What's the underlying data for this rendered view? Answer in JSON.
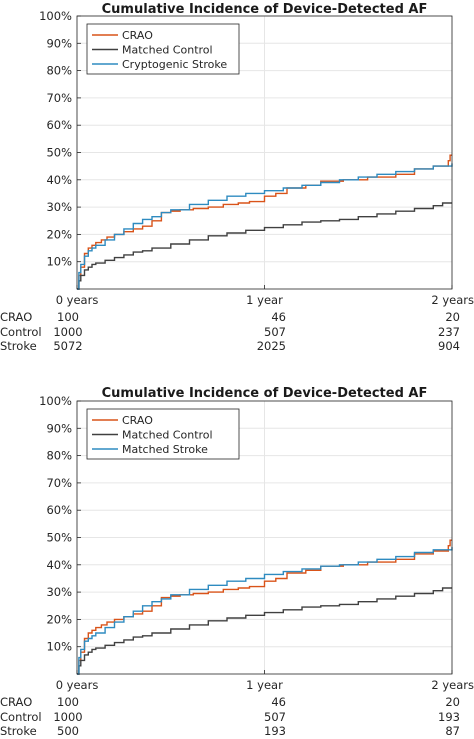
{
  "chart_data": [
    {
      "type": "line",
      "step": true,
      "title": "Cumulative Incidence of Device-Detected AF",
      "xlabel": "",
      "ylabel": "",
      "xlim": [
        0,
        2
      ],
      "ylim": [
        0,
        100
      ],
      "x_ticks": [
        0,
        1,
        2
      ],
      "x_tick_labels": [
        "0 years",
        "1 year",
        "2 years"
      ],
      "y_ticks": [
        10,
        20,
        30,
        40,
        50,
        60,
        70,
        80,
        90,
        100
      ],
      "y_tick_labels": [
        "10%",
        "20%",
        "30%",
        "40%",
        "50%",
        "60%",
        "70%",
        "80%",
        "90%",
        "100%"
      ],
      "grid": true,
      "legend_position": "top-left",
      "series": [
        {
          "name": "CRAO",
          "color": "#D95319",
          "x": [
            0,
            0.01,
            0.02,
            0.04,
            0.06,
            0.08,
            0.1,
            0.13,
            0.16,
            0.2,
            0.25,
            0.3,
            0.35,
            0.4,
            0.45,
            0.5,
            0.55,
            0.62,
            0.7,
            0.78,
            0.86,
            0.92,
            1.0,
            1.06,
            1.12,
            1.22,
            1.3,
            1.42,
            1.55,
            1.7,
            1.8,
            1.9,
            1.98,
            1.99,
            2.0
          ],
          "y": [
            0,
            5,
            8,
            13,
            15,
            16,
            17,
            18,
            19,
            20,
            21,
            22,
            23,
            25,
            28,
            28.5,
            29,
            29.5,
            30,
            31,
            31.5,
            32,
            34,
            35,
            37,
            38,
            39.5,
            40,
            41,
            42,
            44,
            45,
            47,
            49,
            49
          ]
        },
        {
          "name": "Matched Control",
          "color": "#404040",
          "x": [
            0,
            0.01,
            0.02,
            0.04,
            0.06,
            0.08,
            0.1,
            0.15,
            0.2,
            0.25,
            0.3,
            0.35,
            0.4,
            0.5,
            0.6,
            0.7,
            0.8,
            0.9,
            1.0,
            1.1,
            1.2,
            1.3,
            1.4,
            1.5,
            1.6,
            1.7,
            1.8,
            1.9,
            1.95,
            2.0
          ],
          "y": [
            0,
            3,
            5,
            7,
            8,
            9,
            9.5,
            10.5,
            11.5,
            12.5,
            13.5,
            14,
            15,
            16.5,
            18,
            19.5,
            20.5,
            21.5,
            22.5,
            23.5,
            24.5,
            25,
            25.5,
            26.5,
            27.5,
            28.5,
            29.5,
            30.5,
            31.5,
            31.5
          ]
        },
        {
          "name": "Cryptogenic Stroke",
          "color": "#2E8BC0",
          "x": [
            0,
            0.01,
            0.02,
            0.04,
            0.06,
            0.08,
            0.1,
            0.15,
            0.2,
            0.25,
            0.3,
            0.35,
            0.4,
            0.45,
            0.5,
            0.6,
            0.7,
            0.8,
            0.9,
            1.0,
            1.1,
            1.2,
            1.3,
            1.4,
            1.5,
            1.6,
            1.7,
            1.8,
            1.9,
            2.0
          ],
          "y": [
            0,
            6,
            9,
            12,
            14,
            15,
            16,
            18,
            20,
            22,
            24,
            25.5,
            26.5,
            28,
            29,
            31,
            32.5,
            34,
            35,
            36,
            37,
            38,
            39,
            40,
            41,
            42,
            43,
            44,
            45,
            46
          ]
        }
      ],
      "risk_table": {
        "rows": [
          {
            "label": "CRAO",
            "values": [
              "100",
              "46",
              "20"
            ]
          },
          {
            "label": "Control",
            "values": [
              "1000",
              "507",
              "237"
            ]
          },
          {
            "label": "Stroke",
            "values": [
              "5072",
              "2025",
              "904"
            ]
          }
        ]
      }
    },
    {
      "type": "line",
      "step": true,
      "title": "Cumulative Incidence of Device-Detected AF",
      "xlabel": "",
      "ylabel": "",
      "xlim": [
        0,
        2
      ],
      "ylim": [
        0,
        100
      ],
      "x_ticks": [
        0,
        1,
        2
      ],
      "x_tick_labels": [
        "0 years",
        "1 year",
        "2 years"
      ],
      "y_ticks": [
        10,
        20,
        30,
        40,
        50,
        60,
        70,
        80,
        90,
        100
      ],
      "y_tick_labels": [
        "10%",
        "20%",
        "30%",
        "40%",
        "50%",
        "60%",
        "70%",
        "80%",
        "90%",
        "100%"
      ],
      "grid": true,
      "legend_position": "top-left",
      "series": [
        {
          "name": "CRAO",
          "color": "#D95319",
          "x": [
            0,
            0.01,
            0.02,
            0.04,
            0.06,
            0.08,
            0.1,
            0.13,
            0.16,
            0.2,
            0.25,
            0.3,
            0.35,
            0.4,
            0.45,
            0.5,
            0.55,
            0.62,
            0.7,
            0.78,
            0.86,
            0.92,
            1.0,
            1.06,
            1.12,
            1.22,
            1.3,
            1.42,
            1.55,
            1.7,
            1.8,
            1.9,
            1.98,
            1.99,
            2.0
          ],
          "y": [
            0,
            5,
            8,
            13,
            15,
            16,
            17,
            18,
            19,
            20,
            21,
            22,
            23,
            25,
            28,
            28.5,
            29,
            29.5,
            30,
            31,
            31.5,
            32,
            34,
            35,
            37,
            38,
            39.5,
            40,
            41,
            42,
            44,
            45,
            47,
            49,
            49
          ]
        },
        {
          "name": "Matched Control",
          "color": "#404040",
          "x": [
            0,
            0.01,
            0.02,
            0.04,
            0.06,
            0.08,
            0.1,
            0.15,
            0.2,
            0.25,
            0.3,
            0.35,
            0.4,
            0.5,
            0.6,
            0.7,
            0.8,
            0.9,
            1.0,
            1.1,
            1.2,
            1.3,
            1.4,
            1.5,
            1.6,
            1.7,
            1.8,
            1.9,
            1.95,
            2.0
          ],
          "y": [
            0,
            3,
            5,
            7,
            8,
            9,
            9.5,
            10.5,
            11.5,
            12.5,
            13.5,
            14,
            15,
            16.5,
            18,
            19.5,
            20.5,
            21.5,
            22.5,
            23.5,
            24.5,
            25,
            25.5,
            26.5,
            27.5,
            28.5,
            29.5,
            30.5,
            31.5,
            31.5
          ]
        },
        {
          "name": "Matched Stroke",
          "color": "#2E8BC0",
          "x": [
            0,
            0.01,
            0.02,
            0.04,
            0.06,
            0.08,
            0.1,
            0.15,
            0.2,
            0.25,
            0.3,
            0.35,
            0.4,
            0.45,
            0.5,
            0.6,
            0.7,
            0.8,
            0.9,
            1.0,
            1.1,
            1.2,
            1.3,
            1.4,
            1.5,
            1.6,
            1.7,
            1.8,
            1.9,
            2.0
          ],
          "y": [
            0,
            6,
            9,
            12,
            13,
            14,
            15,
            17,
            19,
            21,
            23,
            25,
            26.5,
            27.5,
            29,
            31,
            32.5,
            34,
            35,
            36.5,
            37.5,
            38.5,
            39.5,
            40,
            41,
            42,
            43,
            44.5,
            45.5,
            46.5
          ]
        }
      ],
      "risk_table": {
        "rows": [
          {
            "label": "CRAO",
            "values": [
              "100",
              "46",
              "20"
            ]
          },
          {
            "label": "Control",
            "values": [
              "1000",
              "507",
              "193"
            ]
          },
          {
            "label": "Stroke",
            "values": [
              "500",
              "193",
              "87"
            ]
          }
        ]
      }
    }
  ]
}
